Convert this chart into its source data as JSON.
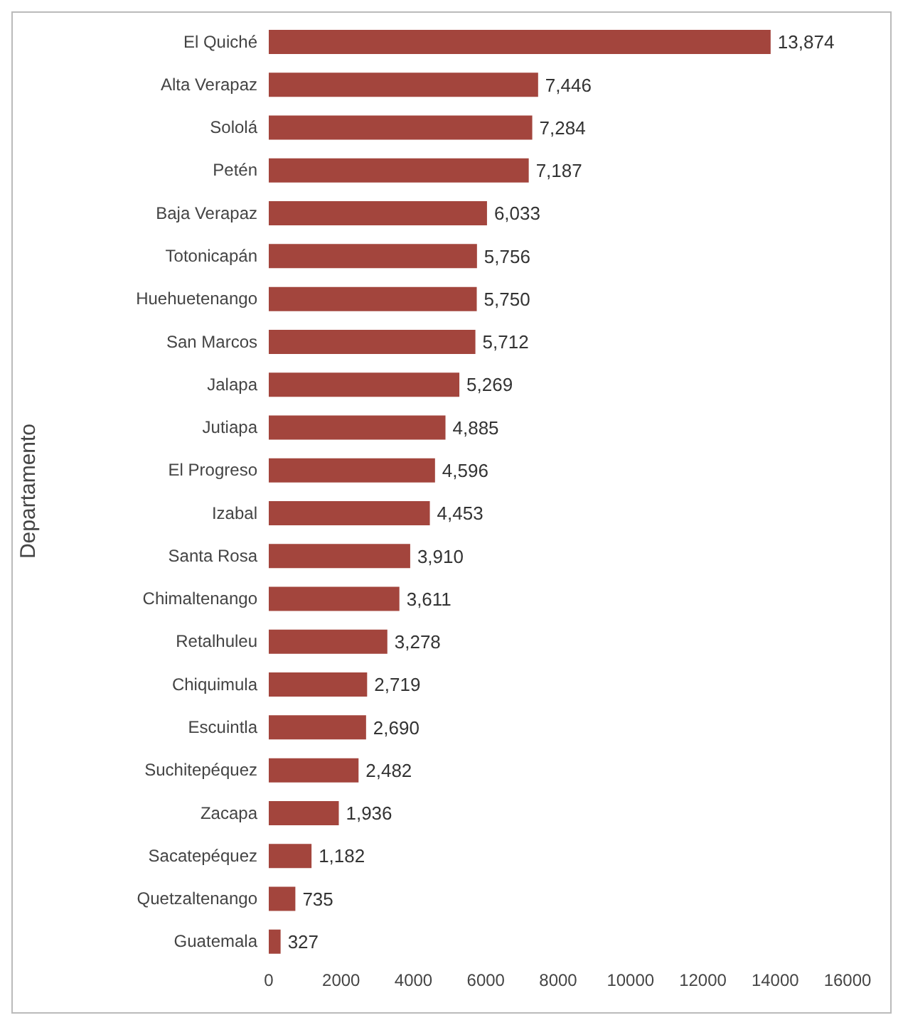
{
  "chart_data": {
    "type": "bar",
    "orientation": "horizontal",
    "ylabel": "Departamento",
    "categories": [
      "El Quiché",
      "Alta Verapaz",
      "Sololá",
      "Petén",
      "Baja Verapaz",
      "Totonicapán",
      "Huehuetenango",
      "San Marcos",
      "Jalapa",
      "Jutiapa",
      "El Progreso",
      "Izabal",
      "Santa Rosa",
      "Chimaltenango",
      "Retalhuleu",
      "Chiquimula",
      "Escuintla",
      "Suchitepéquez",
      "Zacapa",
      "Sacatepéquez",
      "Quetzaltenango",
      "Guatemala"
    ],
    "values": [
      13874,
      7446,
      7284,
      7187,
      6033,
      5756,
      5750,
      5712,
      5269,
      4885,
      4596,
      4453,
      3910,
      3611,
      3278,
      2719,
      2690,
      2482,
      1936,
      1182,
      735,
      327
    ],
    "value_labels": [
      "13,874",
      "7,446",
      "7,284",
      "7,187",
      "6,033",
      "5,756",
      "5,750",
      "5,712",
      "5,269",
      "4,885",
      "4,596",
      "4,453",
      "3,910",
      "3,611",
      "3,278",
      "2,719",
      "2,690",
      "2,482",
      "1,936",
      "1,182",
      "735",
      "327"
    ],
    "color": "#a3453d",
    "xlim": [
      0,
      16000
    ],
    "xticks": [
      0,
      2000,
      4000,
      6000,
      8000,
      10000,
      12000,
      14000,
      16000
    ],
    "grid": false,
    "legend": false
  }
}
